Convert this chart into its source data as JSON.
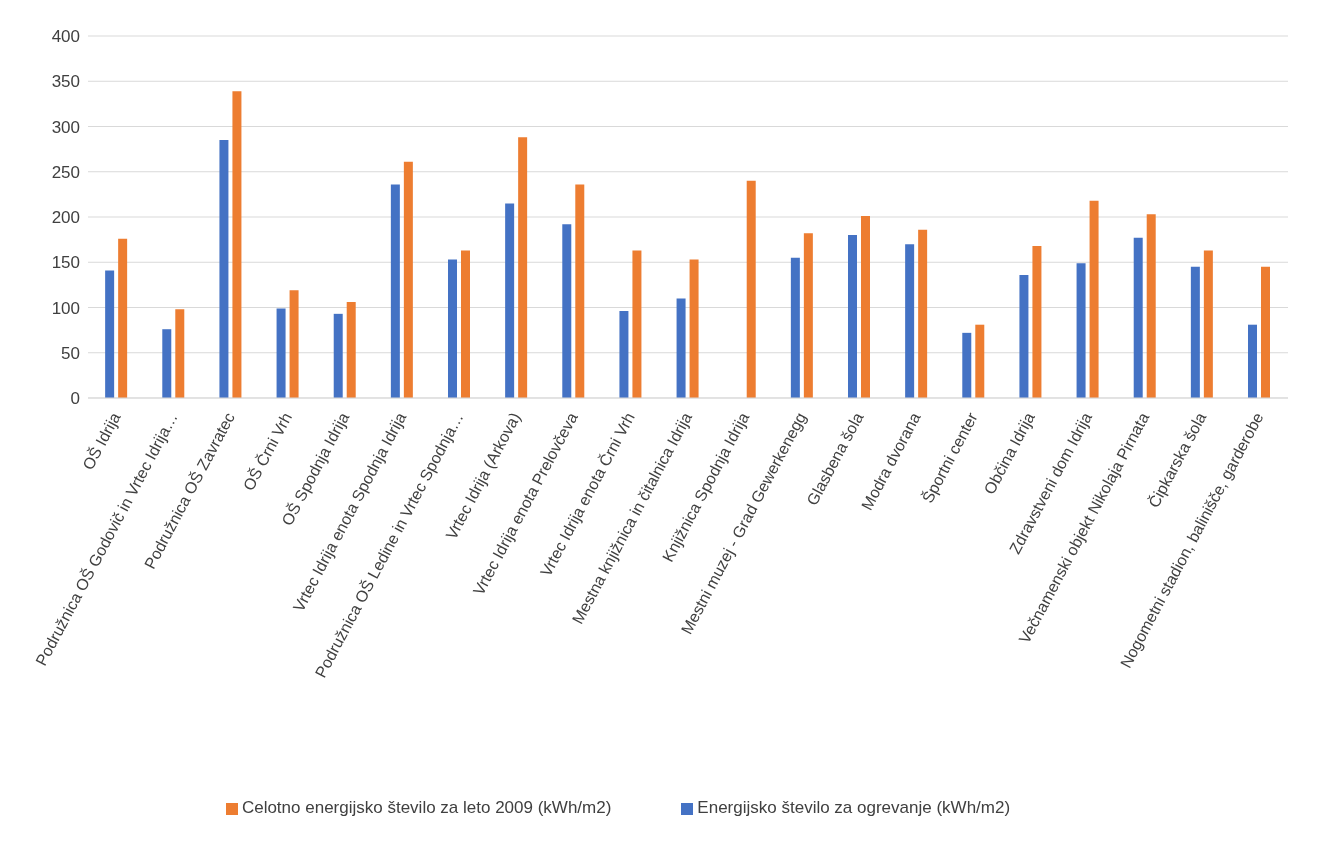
{
  "chart_data": {
    "type": "bar",
    "categories": [
      "OŠ Idrija",
      "Podružnica OŠ Godovič in Vrtec Idrija…",
      "Podružnica OŠ Zavratec",
      "OŠ Črni Vrh",
      "OŠ Spodnja Idrija",
      "Vrtec Idrija enota Spodnja Idrija",
      "Podružnica OŠ Ledine in Vrtec Spodnja…",
      "Vrtec Idrija (Arkova)",
      "Vrtec Idrija enota Prelovčeva",
      "Vrtec Idrija enota Črni Vrh",
      "Mestna knjižnica in čitalnica Idrija",
      "Knjižnica Spodnja Idrija",
      "Mestni muzej - Grad Gewerkenegg",
      "Glasbena šola",
      "Modra dvorana",
      "Športni center",
      "Občina Idrija",
      "Zdravstveni dom Idrija",
      "Večnamenski objekt Nikolaja Pirnata",
      "Čipkarska šola",
      "Nogometni stadion, balinišče, garderobe"
    ],
    "series": [
      {
        "name": "Energijsko število za ogrevanje (kWh/m2)",
        "color": "#4472c4",
        "values": [
          141,
          76,
          285,
          99,
          93,
          236,
          153,
          215,
          192,
          96,
          110,
          null,
          155,
          180,
          170,
          72,
          136,
          149,
          177,
          145,
          81
        ]
      },
      {
        "name": "Celotno energijsko število za leto 2009 (kWh/m2)",
        "color": "#ed7d31",
        "values": [
          176,
          98,
          339,
          119,
          106,
          261,
          163,
          288,
          236,
          163,
          153,
          240,
          182,
          201,
          186,
          81,
          168,
          218,
          203,
          163,
          145
        ]
      }
    ],
    "ylim": [
      0,
      400
    ],
    "yticks": [
      0,
      50,
      100,
      150,
      200,
      250,
      300,
      350,
      400
    ],
    "grid": "y",
    "legend": "bottom"
  }
}
